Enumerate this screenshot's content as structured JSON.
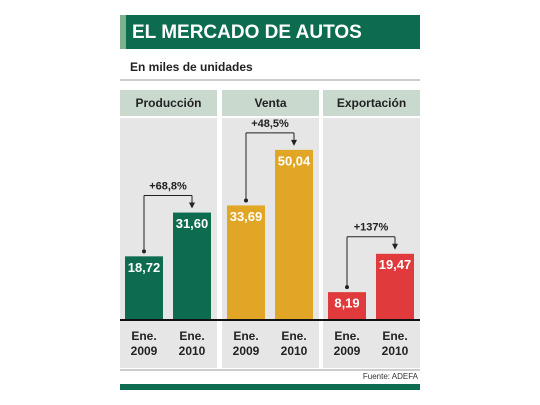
{
  "header": {
    "title": "EL MERCADO DE AUTOS",
    "subtitle": "En miles de unidades"
  },
  "source": "Fuente: ADEFA",
  "chart_data": [
    {
      "type": "bar",
      "title": "Producción",
      "categories": [
        "Ene. 2009",
        "Ene. 2010"
      ],
      "values": [
        18.72,
        31.6
      ],
      "value_labels": [
        "18,72",
        "31,60"
      ],
      "color": "#0d6b4f",
      "annotation": "+68,8%"
    },
    {
      "type": "bar",
      "title": "Venta",
      "categories": [
        "Ene. 2009",
        "Ene. 2010"
      ],
      "values": [
        33.69,
        50.04
      ],
      "value_labels": [
        "33,69",
        "50,04"
      ],
      "color": "#e2a626",
      "annotation": "+48,5%"
    },
    {
      "type": "bar",
      "title": "Exportación",
      "categories": [
        "Ene. 2009",
        "Ene. 2010"
      ],
      "values": [
        8.19,
        19.47
      ],
      "value_labels": [
        "8,19",
        "19,47"
      ],
      "color": "#e03a3c",
      "annotation": "+137%"
    }
  ]
}
